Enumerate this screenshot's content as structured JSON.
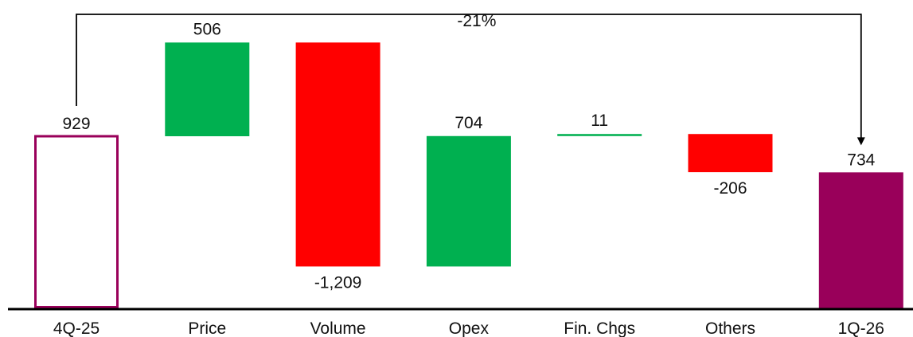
{
  "chart_data": {
    "type": "waterfall",
    "categories": [
      "4Q-25",
      "Price",
      "Volume",
      "Opex",
      "Fin. Chgs",
      "Others",
      "1Q-26"
    ],
    "values": [
      929,
      506,
      -1209,
      704,
      11,
      -206,
      734
    ],
    "value_labels": [
      "929",
      "506",
      "-1,209",
      "704",
      "11",
      "-206",
      "734"
    ],
    "bar_kinds": [
      "start",
      "delta",
      "delta",
      "delta",
      "delta",
      "delta",
      "end"
    ],
    "change_label": "-21%",
    "title": "",
    "xlabel": "",
    "ylabel": "",
    "grid": false,
    "legend": "none"
  },
  "colors": {
    "increase": "#00b050",
    "decrease": "#ff0000",
    "start_outline": "#99005a",
    "end_fill": "#99005a",
    "axis": "#000000",
    "connector": "#000000"
  }
}
